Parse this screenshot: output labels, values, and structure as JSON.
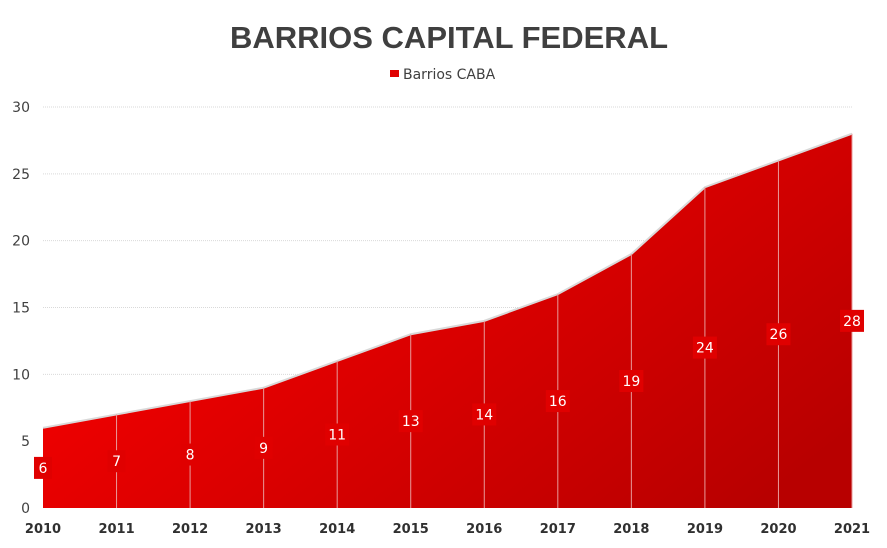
{
  "chart_data": {
    "type": "area",
    "title": "BARRIOS CAPITAL FEDERAL",
    "categories": [
      "2010",
      "2011",
      "2012",
      "2013",
      "2014",
      "2015",
      "2016",
      "2017",
      "2018",
      "2019",
      "2020",
      "2021"
    ],
    "series": [
      {
        "name": "Barrios CABA",
        "values": [
          6,
          7,
          8,
          9,
          11,
          13,
          14,
          16,
          19,
          24,
          26,
          28
        ]
      }
    ],
    "xlabel": "",
    "ylabel": "",
    "ylim": [
      0,
      30
    ],
    "yticks": [
      0,
      5,
      10,
      15,
      20,
      25,
      30
    ],
    "grid": true,
    "legend": "top-center",
    "data_labels": true,
    "colors": {
      "fill_start": "#ff0000",
      "fill_end": "#b80000",
      "label_bg": "#e00000",
      "outline": "#d9d9d9"
    }
  }
}
